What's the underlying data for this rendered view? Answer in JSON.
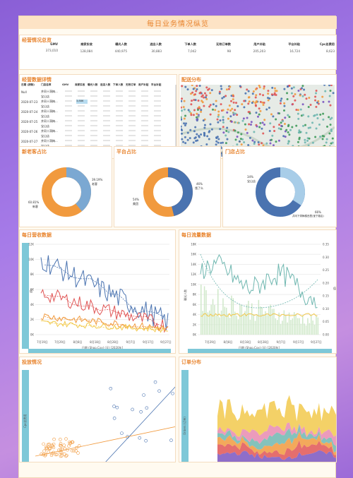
{
  "page_title": "每日业务情况纵览",
  "overview": {
    "title": "经营情况总览",
    "items": [
      {
        "label": "GMV",
        "value": "373,010"
      },
      {
        "label": "商家实收",
        "value": "128,084"
      },
      {
        "label": "曝光人数",
        "value": "440,975"
      },
      {
        "label": "进店人数",
        "value": "30,883"
      },
      {
        "label": "下单人数",
        "value": "7,042"
      },
      {
        "label": "无效订单数",
        "value": "98"
      },
      {
        "label": "用户补贴",
        "value": "205,203"
      },
      {
        "label": "平台补贴",
        "value": "16,724"
      },
      {
        "label": "Cpc总费用",
        "value": "8,623"
      }
    ]
  },
  "detail": {
    "title": "经营数据详情",
    "headers": [
      "日期 (按制)",
      "门店名称",
      "GMV",
      "商家实收",
      "曝光人数",
      "进店人数",
      "下单人数",
      "无效订单",
      "用户补贴",
      "平台补贴"
    ],
    "rows": [
      {
        "date": "Null",
        "store": "井冈十洞梅..."
      },
      {
        "date": "",
        "store": "宝山店"
      },
      {
        "date": "2020-07-23",
        "store": "井冈十洞梅...",
        "highlight": "3,886"
      },
      {
        "date": "",
        "store": "宝山店"
      },
      {
        "date": "2020-07-24",
        "store": "井冈十洞梅..."
      },
      {
        "date": "",
        "store": "宝山店"
      },
      {
        "date": "2020-07-25",
        "store": "井冈十洞梅..."
      },
      {
        "date": "",
        "store": "宝山店"
      },
      {
        "date": "2020-07-26",
        "store": "井冈十洞梅..."
      },
      {
        "date": "",
        "store": "宝山店"
      },
      {
        "date": "2020-07-27",
        "store": "井冈十洞梅..."
      },
      {
        "date": "",
        "store": "宝山店"
      },
      {
        "date": "2020-07-28",
        "store": "井冈十洞梅..."
      },
      {
        "date": "",
        "store": "宝山店"
      }
    ]
  },
  "map": {
    "title": "配送分布",
    "credit": "© 2024 Mapbox © OpenStreetMap"
  },
  "donut_newold": {
    "title": "新老客占比",
    "a_label": "39.19%",
    "a_name": "老客",
    "b_label": "60.81%",
    "b_name": "新客"
  },
  "donut_platform": {
    "title": "平台占比",
    "a_label": "46%",
    "a_name": "饿了么",
    "b_label": "54%",
    "b_name": "美团"
  },
  "donut_store": {
    "title": "门店占比",
    "a_label": "34%",
    "a_name": "宝山店",
    "b_label": "66%",
    "b_name": "井冈下洞梅楼西里(宝宁路店)"
  },
  "revenue": {
    "title": "每日营收数据",
    "yticks": [
      "0K",
      "2K",
      "4K",
      "6K",
      "8K",
      "10K",
      "12K"
    ],
    "xticks": [
      "7月19日",
      "7月29日",
      "8月8日",
      "8月18日",
      "8月28日",
      "9月7日",
      "9月17日",
      "9月27日"
    ],
    "xlabel": "日期 (Shop.Cxx) (天) [2020年]",
    "ylabel": "值"
  },
  "traffic": {
    "title": "每日流量数据",
    "yticks": [
      "0K",
      "2K",
      "4K",
      "6K",
      "8K",
      "10K",
      "12K",
      "14K",
      "16K",
      "18K"
    ],
    "y2ticks": [
      "0.00",
      "0.05",
      "0.10",
      "0.15",
      "0.20",
      "0.25",
      "0.30",
      "0.35"
    ],
    "xticks": [
      "7月29日",
      "8月8日",
      "8月18日",
      "8月28日",
      "9月7日",
      "9月17日",
      "9月27日"
    ],
    "xlabel": "日期 (Shop.Cxx) (天) [2020年]",
    "ylabel": "曝光人数",
    "y2label": "值"
  },
  "ads": {
    "title": "投放情况",
    "ylabel": "Cpc总费用"
  },
  "orders": {
    "title": "订单分布",
    "ylabel": "Orders (订单)"
  },
  "colors": {
    "orange": "#f19a3e",
    "blue": "#4a73b0",
    "red": "#e05555",
    "teal": "#6fb7b0",
    "yellow": "#f2c94c",
    "accent": "#e8842e"
  }
}
